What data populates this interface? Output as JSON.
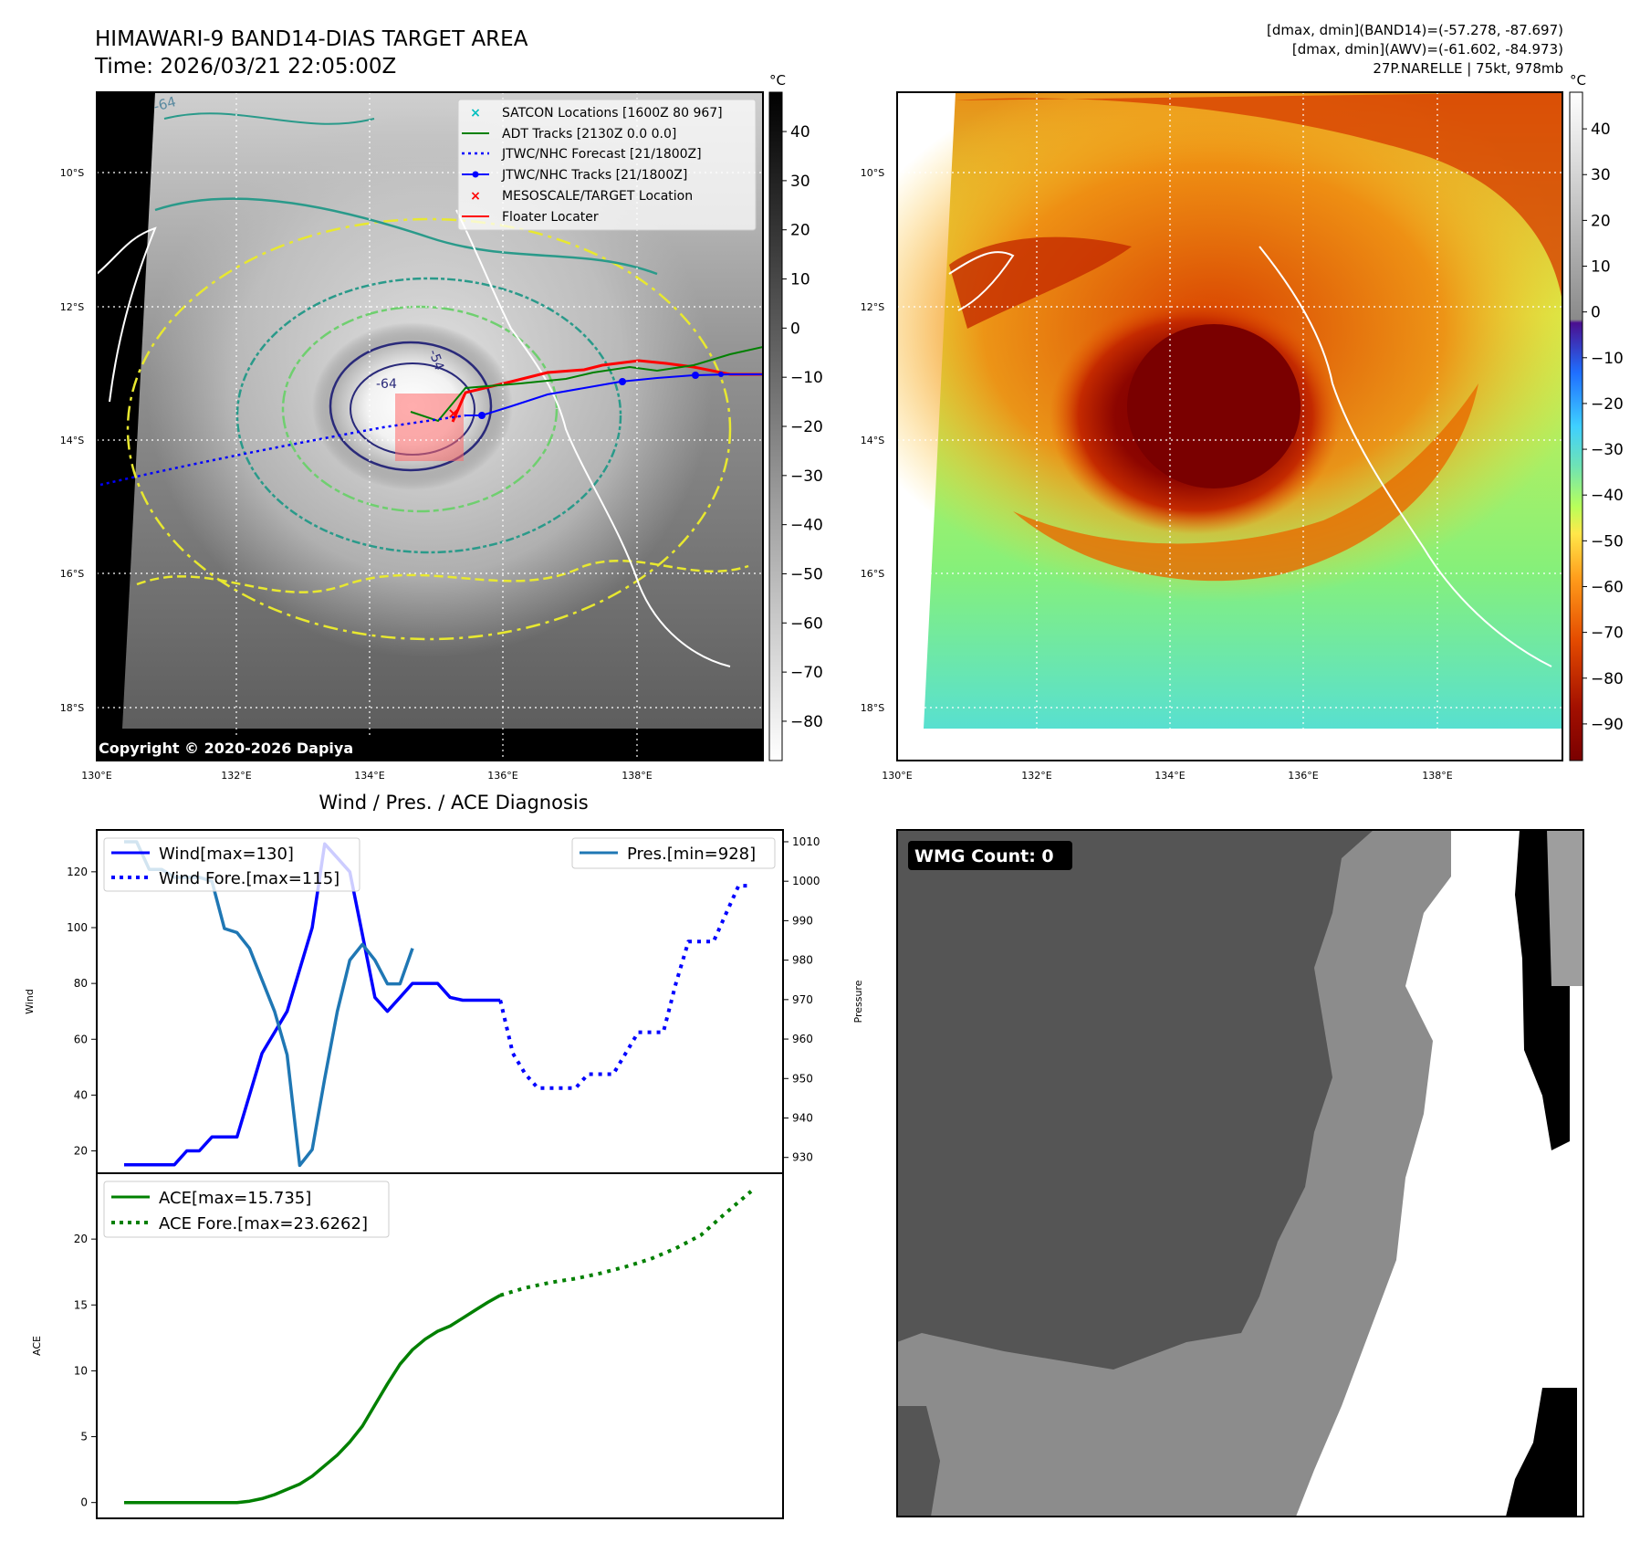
{
  "header": {
    "title_line1": "HIMAWARI-9 BAND14-DIAS TARGET AREA",
    "title_line2": "Time: 2026/03/21 22:05:00Z",
    "info_line1": "[dmax, dmin](BAND14)=(-57.278, -87.697)",
    "info_line2": "[dmax, dmin](AWV)=(-61.602, -84.973)",
    "info_line3": "27P.NARELLE | 75kt, 978mb"
  },
  "map": {
    "lat_labels": [
      "10°S",
      "12°S",
      "14°S",
      "16°S",
      "18°S"
    ],
    "lon_labels": [
      "130°E",
      "132°E",
      "134°E",
      "136°E",
      "138°E"
    ],
    "copyright": "Copyright © 2020-2026 Dapiya",
    "legend": [
      "SATCON Locations [1600Z 80 967]",
      "ADT Tracks [2130Z 0.0 0.0]",
      "JTWC/NHC Forecast [21/1800Z]",
      "JTWC/NHC Tracks [21/1800Z]",
      "MESOSCALE/TARGET Location",
      "Floater Locater"
    ],
    "contour_labels": [
      "-64",
      "-64",
      "-54",
      "-54",
      "-64",
      "-64",
      "-64"
    ],
    "colorbar_gray": {
      "unit": "°C",
      "ticks": [
        "40",
        "30",
        "20",
        "10",
        "0",
        "−10",
        "−20",
        "−30",
        "−40",
        "−50",
        "−60",
        "−70",
        "−80"
      ]
    },
    "colorbar_color": {
      "unit": "°C",
      "ticks": [
        "40",
        "30",
        "20",
        "10",
        "0",
        "−10",
        "−20",
        "−30",
        "−40",
        "−50",
        "−60",
        "−70",
        "−80",
        "−90"
      ]
    },
    "colors": {
      "adt": "#008000",
      "jtwc": "#0000ff",
      "floater": "#ff0000",
      "satcon": "#00bfbf"
    }
  },
  "chart_data": [
    {
      "type": "line",
      "title": "Wind / Pres. / ACE Diagnosis",
      "ylabel": "Wind",
      "ylabel_right": "Pressure",
      "ylim": [
        12,
        135
      ],
      "ylim_right": [
        926,
        1013
      ],
      "yticks": [
        20,
        40,
        60,
        80,
        100,
        120
      ],
      "yticks_right": [
        930,
        940,
        950,
        960,
        970,
        980,
        990,
        1000,
        1010
      ],
      "x": [
        0,
        1,
        2,
        3,
        4,
        5,
        6,
        7,
        8,
        9,
        10,
        11,
        12,
        13,
        14,
        15,
        16,
        17,
        18,
        19,
        20,
        21,
        22,
        23,
        24,
        25,
        26,
        27,
        28,
        29,
        30,
        31,
        32,
        33,
        34,
        35,
        36,
        37,
        38,
        39,
        40,
        41,
        42,
        43,
        44,
        45,
        46,
        47,
        48,
        49,
        50
      ],
      "series": [
        {
          "name": "Wind[max=130]",
          "style": "solid",
          "color": "#0000ff",
          "x": [
            0,
            3,
            4,
            5,
            6,
            7,
            8,
            9,
            10,
            11,
            12,
            13,
            14,
            15,
            16,
            17,
            18,
            19,
            20,
            21,
            22,
            23,
            24,
            25,
            26,
            27,
            28,
            29,
            30
          ],
          "values": [
            15,
            15,
            15,
            20,
            20,
            25,
            25,
            25,
            40,
            55,
            62.5,
            70,
            85,
            100,
            130,
            125,
            120,
            97.5,
            75,
            70,
            75,
            80,
            80,
            80,
            75,
            74,
            74,
            74,
            74
          ]
        },
        {
          "name": "Wind Fore.[max=115]",
          "style": "dotted",
          "color": "#0000ff",
          "x": [
            30,
            31,
            32,
            33,
            34,
            35,
            36,
            37,
            38,
            39,
            40,
            41,
            42,
            43,
            44,
            45,
            46,
            47,
            48,
            49,
            50
          ],
          "values": [
            74,
            55,
            47.5,
            42.5,
            42.5,
            42.5,
            42.5,
            47.5,
            47.5,
            47.5,
            55,
            62.5,
            62.5,
            62.5,
            80,
            95,
            95,
            95,
            105,
            115,
            115
          ]
        },
        {
          "name": "Pres.[min=928]",
          "style": "solid",
          "color": "#1f77b4",
          "axis": "right",
          "x": [
            0,
            1,
            2,
            3,
            4,
            5,
            6,
            7,
            8,
            9,
            10,
            11,
            12,
            13,
            14,
            15,
            16,
            17,
            18,
            19,
            20,
            21,
            22,
            23
          ],
          "values": [
            1010,
            1010,
            1003,
            1003,
            1001,
            1001,
            1001,
            1000,
            988,
            987,
            983,
            975,
            967,
            956,
            928,
            932,
            950,
            967,
            980,
            984,
            980,
            974,
            974,
            983
          ]
        }
      ],
      "legend": [
        "Wind[max=130]",
        "Wind Fore.[max=115]",
        "Pres.[min=928]"
      ]
    },
    {
      "type": "line",
      "ylabel": "ACE",
      "ylim": [
        -1.2,
        25
      ],
      "yticks": [
        0,
        5,
        10,
        15,
        20
      ],
      "series": [
        {
          "name": "ACE[max=15.735]",
          "style": "solid",
          "color": "#008000",
          "x": [
            0,
            5,
            9,
            10,
            11,
            12,
            13,
            14,
            15,
            16,
            17,
            18,
            19,
            20,
            21,
            22,
            23,
            24,
            25,
            26,
            27,
            28,
            29,
            30
          ],
          "values": [
            0,
            0,
            0,
            0.1,
            0.3,
            0.6,
            1.0,
            1.4,
            2.0,
            2.8,
            3.6,
            4.6,
            5.8,
            7.4,
            9.0,
            10.5,
            11.6,
            12.4,
            13.0,
            13.4,
            14.0,
            14.6,
            15.2,
            15.735
          ]
        },
        {
          "name": "ACE Fore.[max=23.6262]",
          "style": "dotted",
          "color": "#008000",
          "x": [
            30,
            32,
            34,
            36,
            38,
            40,
            42,
            44,
            46,
            48,
            50
          ],
          "values": [
            15.735,
            16.3,
            16.7,
            17.0,
            17.4,
            17.9,
            18.5,
            19.3,
            20.3,
            22.0,
            23.6262
          ]
        }
      ],
      "legend": [
        "ACE[max=15.735]",
        "ACE Fore.[max=23.6262]"
      ]
    }
  ],
  "wmg": {
    "label": "WMG Count: 0"
  }
}
